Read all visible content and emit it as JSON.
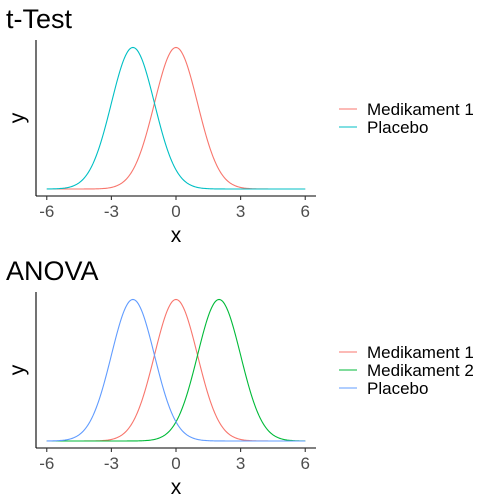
{
  "chart_data": [
    {
      "type": "line",
      "title": "t-Test",
      "xlabel": "x",
      "ylabel": "y",
      "xlim": [
        -6.5,
        6.5
      ],
      "x_ticks": [
        "-6",
        "-3",
        "0",
        "3",
        "6"
      ],
      "x_tick_values": [
        -6,
        -3,
        0,
        3,
        6
      ],
      "y_ticks": [],
      "grid": false,
      "legend_position": "right",
      "curve_shape": "normal density, sd 1",
      "x_range": [
        -6,
        6
      ],
      "series": [
        {
          "name": "Medikament 1",
          "color": "#F8766D",
          "mean": 0,
          "sd": 1
        },
        {
          "name": "Placebo",
          "color": "#00BFC4",
          "mean": -2,
          "sd": 1
        }
      ]
    },
    {
      "type": "line",
      "title": "ANOVA",
      "xlabel": "x",
      "ylabel": "y",
      "xlim": [
        -6.5,
        6.5
      ],
      "x_ticks": [
        "-6",
        "-3",
        "0",
        "3",
        "6"
      ],
      "x_tick_values": [
        -6,
        -3,
        0,
        3,
        6
      ],
      "y_ticks": [],
      "grid": false,
      "legend_position": "right",
      "curve_shape": "normal density, sd 1",
      "x_range": [
        -6,
        6
      ],
      "series": [
        {
          "name": "Medikament 1",
          "color": "#F8766D",
          "mean": 0,
          "sd": 1
        },
        {
          "name": "Medikament 2",
          "color": "#00BA38",
          "mean": 2,
          "sd": 1
        },
        {
          "name": "Placebo",
          "color": "#619CFF",
          "mean": -2,
          "sd": 1
        }
      ]
    }
  ]
}
